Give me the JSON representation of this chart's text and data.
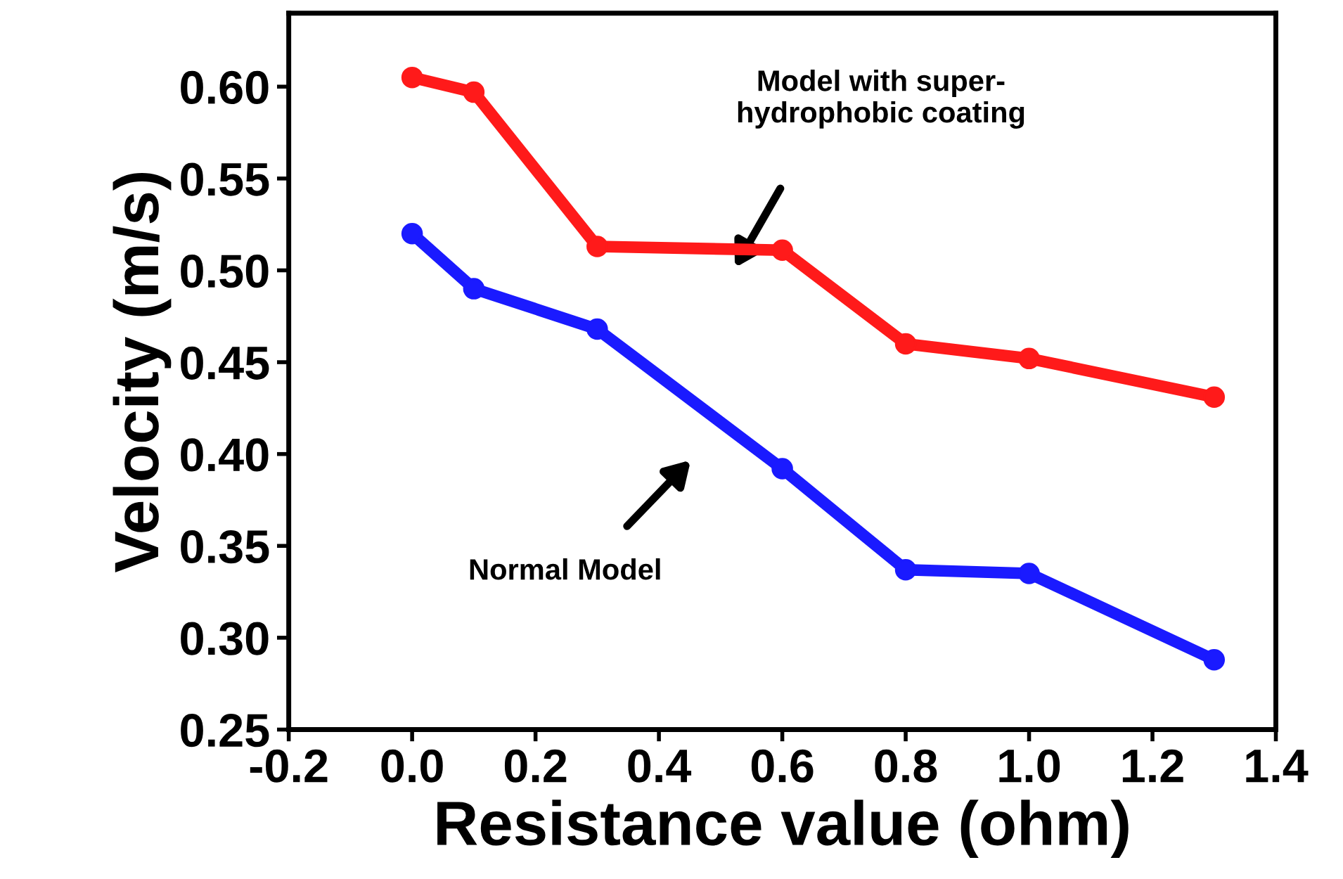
{
  "chart_data": {
    "type": "line",
    "xlabel": "Resistance value (ohm)",
    "ylabel": "Velocity (m/s)",
    "xlim": [
      -0.2,
      1.4
    ],
    "xticks": [
      -0.2,
      {
        "value": 0,
        "label": "0.0"
      },
      0.2,
      0.4,
      0.6,
      0.8,
      {
        "value": 1,
        "label": "1.0"
      },
      1.2,
      1.4
    ],
    "ylim": [
      0.25,
      0.64
    ],
    "yticks": [
      0.25,
      {
        "value": 0.3,
        "label": "0.30"
      },
      0.35,
      {
        "value": 0.4,
        "label": "0.40"
      },
      0.45,
      {
        "value": 0.5,
        "label": "0.50"
      },
      0.55,
      {
        "value": 0.6,
        "label": "0.60"
      }
    ],
    "grid": false,
    "legend": false,
    "marker": "circle",
    "line_style": "solid",
    "series": [
      {
        "color": "#ff1a1a",
        "x": [
          0,
          0.1,
          0.3,
          0.6,
          0.8,
          1.0,
          1.3
        ],
        "values": [
          0.605,
          0.597,
          0.513,
          0.511,
          0.46,
          0.452,
          0.431
        ]
      },
      {
        "color": "#1a1aff",
        "x": [
          0,
          0.1,
          0.3,
          0.6,
          0.8,
          1.0,
          1.3
        ],
        "values": [
          0.52,
          0.49,
          0.468,
          0.392,
          0.337,
          0.335,
          0.288
        ]
      }
    ],
    "annotations": [
      "Model with super-\nhydrophobic coating",
      "Normal Model"
    ]
  }
}
